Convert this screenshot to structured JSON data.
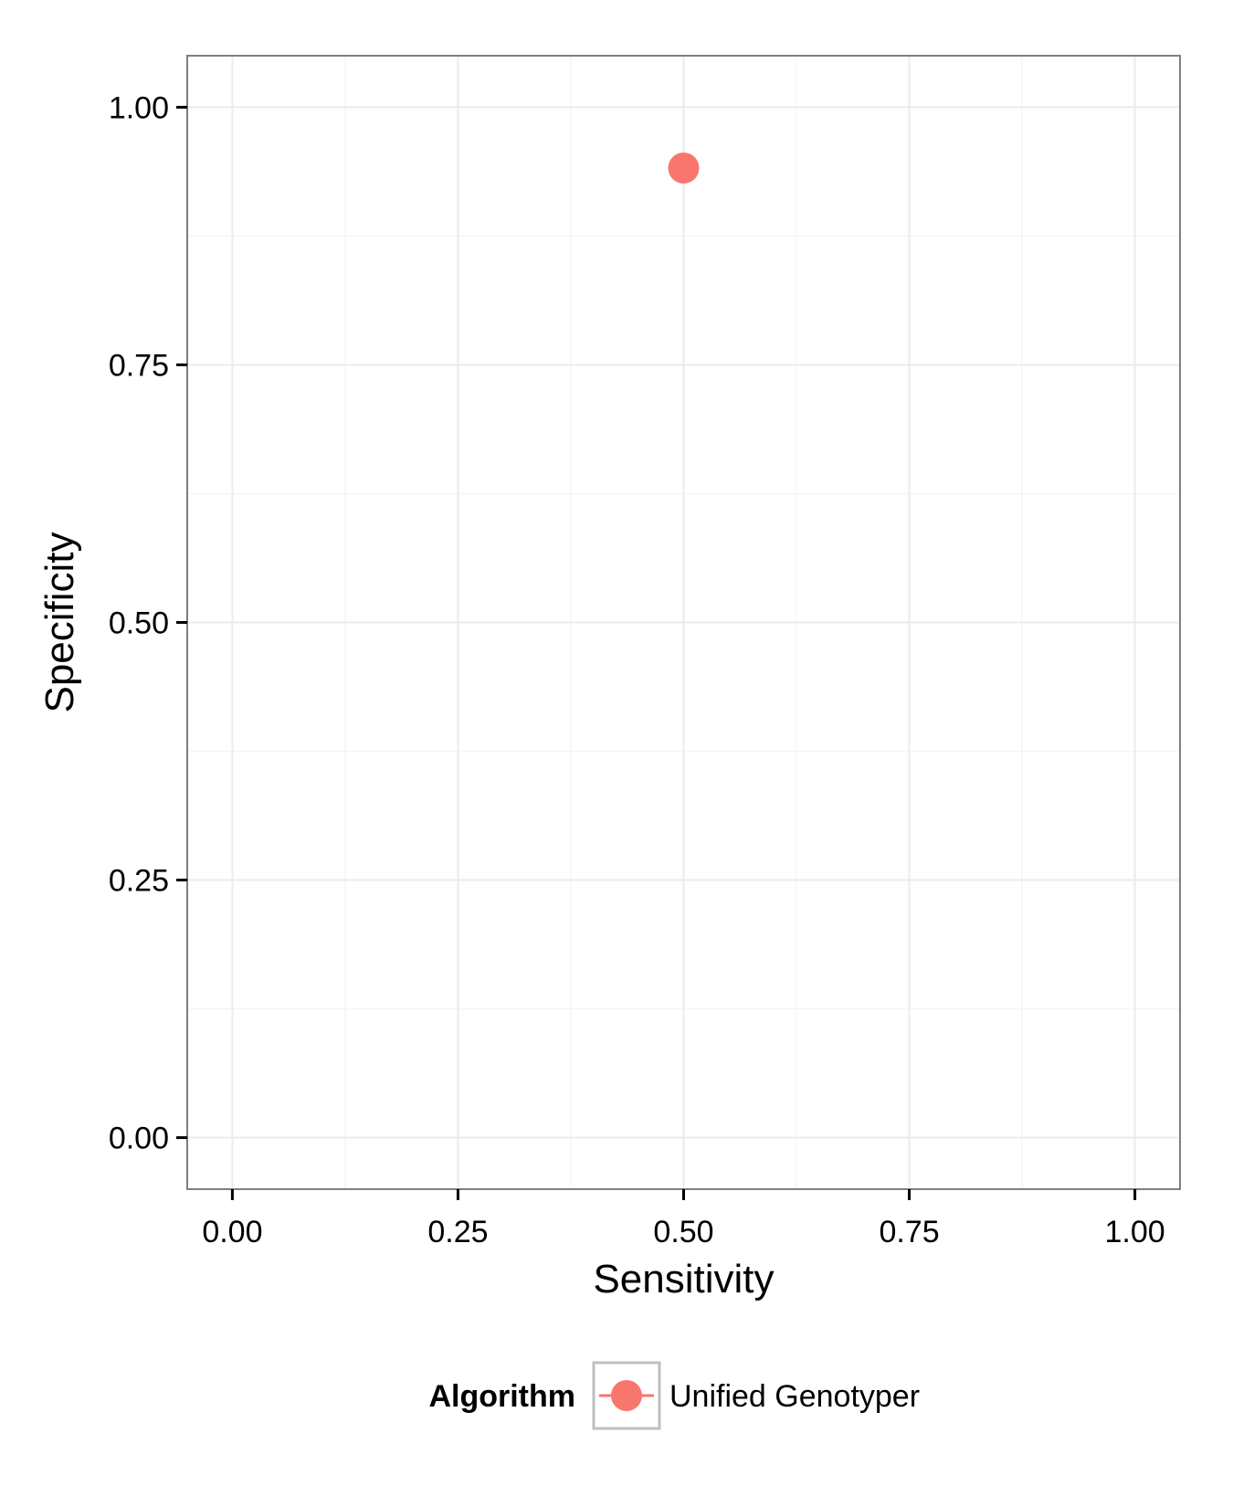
{
  "chart_data": {
    "type": "scatter",
    "xlabel": "Sensitivity",
    "ylabel": "Specificity",
    "xlim": [
      -0.05,
      1.05
    ],
    "ylim": [
      -0.05,
      1.05
    ],
    "x_ticks": [
      0,
      0.25,
      0.5,
      0.75,
      1
    ],
    "y_ticks": [
      0,
      0.25,
      0.5,
      0.75,
      1
    ],
    "x_tick_labels": [
      "0.00",
      "0.25",
      "0.50",
      "0.75",
      "1.00"
    ],
    "y_tick_labels": [
      "0.00",
      "0.25",
      "0.50",
      "0.75",
      "1.00"
    ],
    "grid": true,
    "legend_position": "bottom",
    "legend": {
      "title": "Algorithm",
      "entries": [
        "Unified Genotyper"
      ]
    },
    "series": [
      {
        "name": "Unified Genotyper",
        "color": "#F8766D",
        "points": [
          {
            "x": 0.5,
            "y": 0.941
          }
        ]
      }
    ]
  },
  "colors": {
    "panel_border": "#7f7f7f",
    "grid_major": "#ebebeb",
    "grid_minor": "#f5f5f5",
    "axis_tick": "#000000"
  }
}
